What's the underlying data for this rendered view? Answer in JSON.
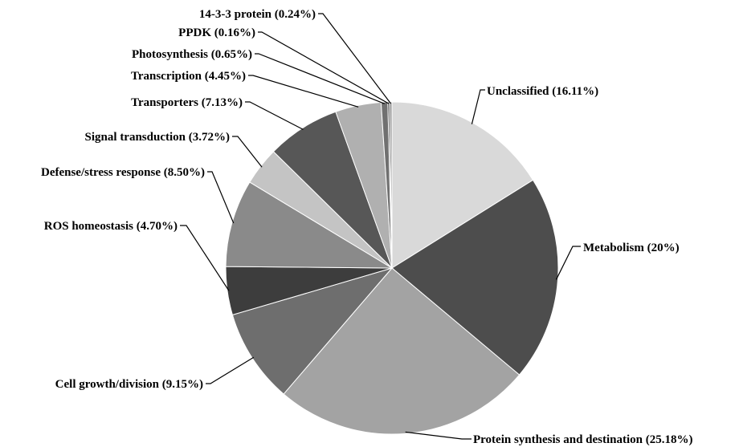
{
  "chart_data": {
    "type": "pie",
    "title": "",
    "slices": [
      {
        "name": "Unclassified",
        "value": 16.11,
        "label": "Unclassified (16.11%)",
        "color": "#d9d9d9"
      },
      {
        "name": "Metabolism",
        "value": 20,
        "label": "Metabolism (20%)",
        "color": "#4d4d4d"
      },
      {
        "name": "Protein synthesis and destination",
        "value": 25.18,
        "label": "Protein synthesis and destination (25.18%)",
        "color": "#a3a3a3"
      },
      {
        "name": "Cell growth/division",
        "value": 9.15,
        "label": "Cell growth/division (9.15%)",
        "color": "#6e6e6e"
      },
      {
        "name": "ROS homeostasis",
        "value": 4.7,
        "label": "ROS homeostasis (4.70%)",
        "color": "#3d3d3d"
      },
      {
        "name": "Defense/stress response",
        "value": 8.5,
        "label": "Defense/stress response (8.50%)",
        "color": "#8a8a8a"
      },
      {
        "name": "Signal transduction",
        "value": 3.72,
        "label": "Signal transduction (3.72%)",
        "color": "#c4c4c4"
      },
      {
        "name": "Transporters",
        "value": 7.13,
        "label": "Transporters (7.13%)",
        "color": "#575757"
      },
      {
        "name": "Transcription",
        "value": 4.45,
        "label": "Transcription (4.45%)",
        "color": "#b0b0b0"
      },
      {
        "name": "Photosynthesis",
        "value": 0.65,
        "label": "Photosynthesis (0.65%)",
        "color": "#707070"
      },
      {
        "name": "PPDK",
        "value": 0.16,
        "label": "PPDK (0.16%)",
        "color": "#2e2e2e"
      },
      {
        "name": "14-3-3 protein",
        "value": 0.24,
        "label": "14-3-3 protein (0.24%)",
        "color": "#999999"
      }
    ],
    "start_angle": "12 o'clock",
    "direction": "clockwise",
    "legend": "none"
  }
}
